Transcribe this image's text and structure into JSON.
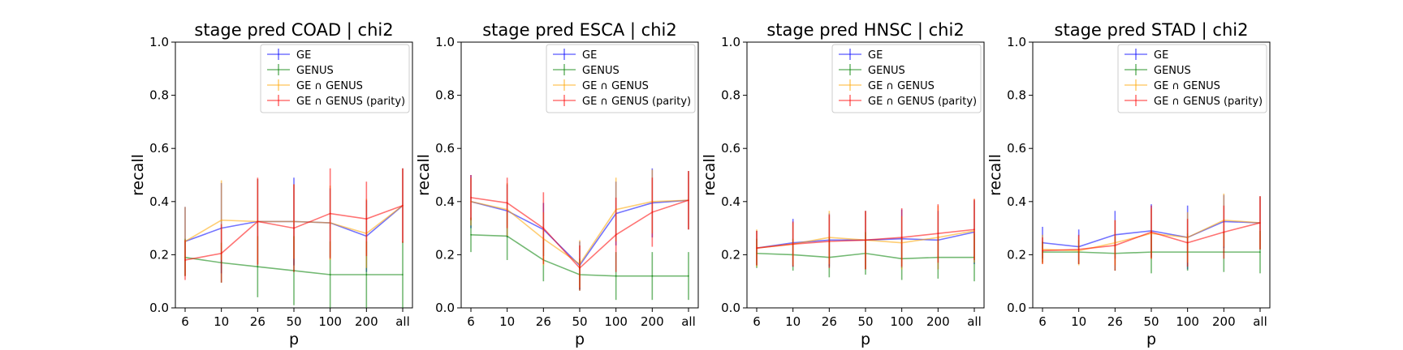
{
  "chart_data": [
    {
      "type": "line",
      "title": "stage pred COAD | chi2",
      "xlabel": "p",
      "ylabel": "recall",
      "categories": [
        "6",
        "10",
        "26",
        "50",
        "100",
        "200",
        "all"
      ],
      "ylim": [
        0,
        1
      ],
      "yticks": [
        "0.0",
        "0.2",
        "0.4",
        "0.6",
        "0.8",
        "1.0"
      ],
      "legend_position": "top-right",
      "series": [
        {
          "name": "GE",
          "color": "#0000ff",
          "values": [
            0.25,
            0.3,
            0.325,
            0.325,
            0.32,
            0.27,
            0.385
          ],
          "errors": [
            0.13,
            0.17,
            0.16,
            0.165,
            0.13,
            0.135,
            0.14
          ]
        },
        {
          "name": "GENUS",
          "color": "#008000",
          "values": [
            0.19,
            0.17,
            0.155,
            0.14,
            0.125,
            0.125,
            0.125
          ],
          "errors": [
            0.07,
            0.075,
            0.115,
            0.13,
            0.125,
            0.125,
            0.125
          ]
        },
        {
          "name": "GE ∩ GENUS",
          "color": "#ffa500",
          "values": [
            0.25,
            0.33,
            0.325,
            0.325,
            0.32,
            0.28,
            0.385
          ],
          "errors": [
            0.13,
            0.15,
            0.16,
            0.14,
            0.14,
            0.13,
            0.14
          ]
        },
        {
          "name": "GE ∩ GENUS (parity)",
          "color": "#ff0000",
          "values": [
            0.18,
            0.205,
            0.325,
            0.3,
            0.355,
            0.335,
            0.385
          ],
          "errors": [
            0.075,
            0.11,
            0.165,
            0.165,
            0.17,
            0.14,
            0.14
          ]
        }
      ]
    },
    {
      "type": "line",
      "title": "stage pred ESCA | chi2",
      "xlabel": "p",
      "ylabel": "recall",
      "categories": [
        "6",
        "10",
        "26",
        "50",
        "100",
        "200",
        "all"
      ],
      "ylim": [
        0,
        1
      ],
      "yticks": [
        "0.0",
        "0.2",
        "0.4",
        "0.6",
        "0.8",
        "1.0"
      ],
      "legend_position": "top-right",
      "series": [
        {
          "name": "GE",
          "color": "#0000ff",
          "values": [
            0.4,
            0.365,
            0.295,
            0.16,
            0.355,
            0.395,
            0.405
          ],
          "errors": [
            0.1,
            0.1,
            0.1,
            0.09,
            0.12,
            0.13,
            0.11
          ]
        },
        {
          "name": "GENUS",
          "color": "#008000",
          "values": [
            0.275,
            0.27,
            0.18,
            0.125,
            0.12,
            0.12,
            0.12
          ],
          "errors": [
            0.065,
            0.09,
            0.08,
            0.06,
            0.09,
            0.09,
            0.09
          ]
        },
        {
          "name": "GE ∩ GENUS",
          "color": "#ffa500",
          "values": [
            0.4,
            0.37,
            0.26,
            0.165,
            0.37,
            0.4,
            0.405
          ],
          "errors": [
            0.09,
            0.1,
            0.1,
            0.09,
            0.12,
            0.12,
            0.11
          ]
        },
        {
          "name": "GE ∩ GENUS (parity)",
          "color": "#ff0000",
          "values": [
            0.415,
            0.395,
            0.3,
            0.15,
            0.275,
            0.36,
            0.405
          ],
          "errors": [
            0.085,
            0.095,
            0.135,
            0.085,
            0.14,
            0.13,
            0.11
          ]
        }
      ]
    },
    {
      "type": "line",
      "title": "stage pred HNSC | chi2",
      "xlabel": "p",
      "ylabel": "recall",
      "categories": [
        "6",
        "10",
        "26",
        "50",
        "100",
        "200",
        "all"
      ],
      "ylim": [
        0,
        1
      ],
      "yticks": [
        "0.0",
        "0.2",
        "0.4",
        "0.6",
        "0.8",
        "1.0"
      ],
      "legend_position": "top-right",
      "series": [
        {
          "name": "GE",
          "color": "#0000ff",
          "values": [
            0.225,
            0.245,
            0.255,
            0.255,
            0.26,
            0.255,
            0.285
          ],
          "errors": [
            0.065,
            0.09,
            0.1,
            0.11,
            0.11,
            0.11,
            0.12
          ]
        },
        {
          "name": "GENUS",
          "color": "#008000",
          "values": [
            0.205,
            0.2,
            0.19,
            0.205,
            0.185,
            0.19,
            0.19
          ],
          "errors": [
            0.055,
            0.06,
            0.075,
            0.08,
            0.08,
            0.08,
            0.09
          ]
        },
        {
          "name": "GE ∩ GENUS",
          "color": "#ffa500",
          "values": [
            0.225,
            0.24,
            0.265,
            0.255,
            0.245,
            0.265,
            0.29
          ],
          "errors": [
            0.07,
            0.08,
            0.1,
            0.11,
            0.1,
            0.12,
            0.12
          ]
        },
        {
          "name": "GE ∩ GENUS (parity)",
          "color": "#ff0000",
          "values": [
            0.225,
            0.24,
            0.25,
            0.255,
            0.265,
            0.28,
            0.295
          ],
          "errors": [
            0.065,
            0.085,
            0.1,
            0.11,
            0.11,
            0.11,
            0.115
          ]
        }
      ]
    },
    {
      "type": "line",
      "title": "stage pred STAD | chi2",
      "xlabel": "p",
      "ylabel": "recall",
      "categories": [
        "6",
        "10",
        "26",
        "50",
        "100",
        "200",
        "all"
      ],
      "ylim": [
        0,
        1
      ],
      "yticks": [
        "0.0",
        "0.2",
        "0.4",
        "0.6",
        "0.8",
        "1.0"
      ],
      "legend_position": "top-right",
      "series": [
        {
          "name": "GE",
          "color": "#0000ff",
          "values": [
            0.245,
            0.23,
            0.275,
            0.29,
            0.265,
            0.325,
            0.32
          ],
          "errors": [
            0.06,
            0.065,
            0.09,
            0.1,
            0.12,
            0.1,
            0.1
          ]
        },
        {
          "name": "GENUS",
          "color": "#008000",
          "values": [
            0.21,
            0.21,
            0.205,
            0.21,
            0.21,
            0.21,
            0.21
          ],
          "errors": [
            0.04,
            0.045,
            0.065,
            0.08,
            0.07,
            0.075,
            0.08
          ]
        },
        {
          "name": "GE ∩ GENUS",
          "color": "#ffa500",
          "values": [
            0.22,
            0.215,
            0.245,
            0.28,
            0.265,
            0.33,
            0.32
          ],
          "errors": [
            0.055,
            0.055,
            0.085,
            0.095,
            0.095,
            0.1,
            0.1
          ]
        },
        {
          "name": "GE ∩ GENUS (parity)",
          "color": "#ff0000",
          "values": [
            0.215,
            0.22,
            0.235,
            0.285,
            0.245,
            0.285,
            0.32
          ],
          "errors": [
            0.05,
            0.055,
            0.095,
            0.1,
            0.09,
            0.1,
            0.1
          ]
        }
      ]
    }
  ]
}
